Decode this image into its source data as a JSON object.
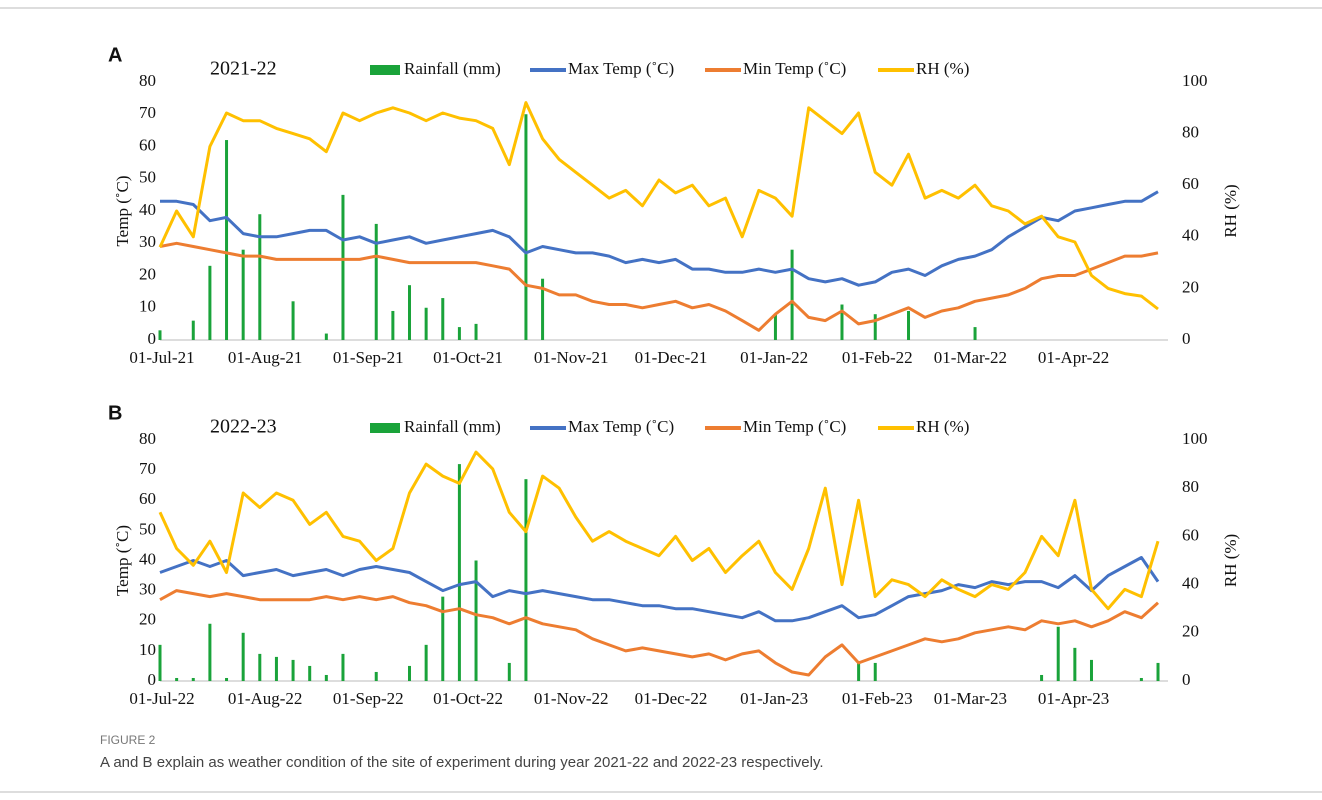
{
  "chart_data": [
    {
      "type": "combo",
      "panel": "A",
      "title": "2021-22",
      "y_label": "Temp (˚C)",
      "y2_label": "RH (%)",
      "x": [
        "01-Jul-21",
        "06-Jul-21",
        "11-Jul-21",
        "16-Jul-21",
        "21-Jul-21",
        "26-Jul-21",
        "31-Jul-21",
        "05-Aug-21",
        "10-Aug-21",
        "15-Aug-21",
        "20-Aug-21",
        "25-Aug-21",
        "30-Aug-21",
        "04-Sep-21",
        "09-Sep-21",
        "14-Sep-21",
        "19-Sep-21",
        "24-Sep-21",
        "29-Sep-21",
        "04-Oct-21",
        "09-Oct-21",
        "14-Oct-21",
        "19-Oct-21",
        "24-Oct-21",
        "29-Oct-21",
        "03-Nov-21",
        "08-Nov-21",
        "13-Nov-21",
        "18-Nov-21",
        "23-Nov-21",
        "28-Nov-21",
        "03-Dec-21",
        "08-Dec-21",
        "13-Dec-21",
        "18-Dec-21",
        "23-Dec-21",
        "28-Dec-21",
        "02-Jan-22",
        "07-Jan-22",
        "12-Jan-22",
        "17-Jan-22",
        "22-Jan-22",
        "27-Jan-22",
        "01-Feb-22",
        "06-Feb-22",
        "11-Feb-22",
        "16-Feb-22",
        "21-Feb-22",
        "26-Feb-22",
        "03-Mar-22",
        "08-Mar-22",
        "13-Mar-22",
        "18-Mar-22",
        "23-Mar-22",
        "28-Mar-22",
        "02-Apr-22",
        "07-Apr-22",
        "12-Apr-22",
        "17-Apr-22",
        "22-Apr-22",
        "27-Apr-22"
      ],
      "xlim": [
        "01-Jul-21",
        "30-Apr-22"
      ],
      "xticks": [
        "01-Jul-21",
        "01-Aug-21",
        "01-Sep-21",
        "01-Oct-21",
        "01-Nov-21",
        "01-Dec-21",
        "01-Jan-22",
        "01-Feb-22",
        "01-Mar-22",
        "01-Apr-22"
      ],
      "ylim": [
        0,
        80
      ],
      "yticks": [
        0,
        10,
        20,
        30,
        40,
        50,
        60,
        70,
        80
      ],
      "y2lim": [
        0,
        100
      ],
      "y2ticks": [
        0,
        20,
        40,
        60,
        80,
        100
      ],
      "series": [
        {
          "name": "Rainfall (mm)",
          "mark": "bar",
          "color": "#1aa33a",
          "values": [
            3,
            0,
            6,
            23,
            62,
            28,
            39,
            0,
            12,
            0,
            2,
            45,
            0,
            36,
            9,
            17,
            10,
            13,
            4,
            5,
            0,
            0,
            70,
            19,
            0,
            0,
            0,
            0,
            0,
            0,
            0,
            0,
            0,
            0,
            0,
            0,
            0,
            8,
            28,
            0,
            0,
            11,
            0,
            8,
            0,
            9,
            0,
            0,
            0,
            4,
            0,
            0,
            0,
            0,
            0,
            0,
            0,
            0,
            0,
            0,
            0
          ]
        },
        {
          "name": "Max Temp (˚C)",
          "mark": "line",
          "color": "#4472c4",
          "values": [
            43,
            43,
            42,
            37,
            38,
            33,
            32,
            32,
            33,
            34,
            34,
            31,
            32,
            30,
            31,
            32,
            30,
            31,
            32,
            33,
            34,
            32,
            27,
            29,
            28,
            27,
            27,
            26,
            24,
            25,
            24,
            25,
            22,
            22,
            21,
            21,
            22,
            21,
            22,
            19,
            18,
            19,
            17,
            18,
            21,
            22,
            20,
            23,
            25,
            26,
            28,
            32,
            35,
            38,
            37,
            40,
            41,
            42,
            43,
            43,
            46
          ]
        },
        {
          "name": "Min Temp (˚C)",
          "mark": "line",
          "color": "#ed7d31",
          "values": [
            29,
            30,
            29,
            28,
            27,
            26,
            26,
            25,
            25,
            25,
            25,
            25,
            25,
            26,
            25,
            24,
            24,
            24,
            24,
            24,
            23,
            22,
            17,
            16,
            14,
            14,
            12,
            11,
            11,
            10,
            11,
            12,
            10,
            11,
            9,
            6,
            3,
            8,
            12,
            7,
            6,
            9,
            5,
            6,
            8,
            10,
            7,
            9,
            10,
            12,
            13,
            14,
            16,
            19,
            20,
            20,
            22,
            24,
            26,
            26,
            27
          ]
        },
        {
          "name": "RH (%)",
          "mark": "line",
          "axis": "y2",
          "color": "#ffc000",
          "values": [
            36,
            50,
            40,
            75,
            88,
            85,
            85,
            82,
            80,
            78,
            73,
            88,
            85,
            88,
            90,
            88,
            85,
            88,
            86,
            85,
            82,
            68,
            92,
            78,
            70,
            65,
            60,
            55,
            58,
            52,
            62,
            57,
            60,
            52,
            55,
            40,
            58,
            55,
            48,
            90,
            85,
            80,
            88,
            65,
            60,
            72,
            55,
            58,
            55,
            60,
            52,
            50,
            45,
            48,
            40,
            38,
            25,
            20,
            18,
            17,
            12
          ]
        }
      ]
    },
    {
      "type": "combo",
      "panel": "B",
      "title": "2022-23",
      "y_label": "Temp (˚C)",
      "y2_label": "RH (%)",
      "x": [
        "01-Jul-22",
        "06-Jul-22",
        "11-Jul-22",
        "16-Jul-22",
        "21-Jul-22",
        "26-Jul-22",
        "31-Jul-22",
        "05-Aug-22",
        "10-Aug-22",
        "15-Aug-22",
        "20-Aug-22",
        "25-Aug-22",
        "30-Aug-22",
        "04-Sep-22",
        "09-Sep-22",
        "14-Sep-22",
        "19-Sep-22",
        "24-Sep-22",
        "29-Sep-22",
        "04-Oct-22",
        "09-Oct-22",
        "14-Oct-22",
        "19-Oct-22",
        "24-Oct-22",
        "29-Oct-22",
        "03-Nov-22",
        "08-Nov-22",
        "13-Nov-22",
        "18-Nov-22",
        "23-Nov-22",
        "28-Nov-22",
        "03-Dec-22",
        "08-Dec-22",
        "13-Dec-22",
        "18-Dec-22",
        "23-Dec-22",
        "28-Dec-22",
        "02-Jan-23",
        "07-Jan-23",
        "12-Jan-23",
        "17-Jan-23",
        "22-Jan-23",
        "27-Jan-23",
        "01-Feb-23",
        "06-Feb-23",
        "11-Feb-23",
        "16-Feb-23",
        "21-Feb-23",
        "26-Feb-23",
        "03-Mar-23",
        "08-Mar-23",
        "13-Mar-23",
        "18-Mar-23",
        "23-Mar-23",
        "28-Mar-23",
        "02-Apr-23",
        "07-Apr-23",
        "12-Apr-23",
        "17-Apr-23",
        "22-Apr-23",
        "27-Apr-23"
      ],
      "xlim": [
        "01-Jul-22",
        "30-Apr-23"
      ],
      "xticks": [
        "01-Jul-22",
        "01-Aug-22",
        "01-Sep-22",
        "01-Oct-22",
        "01-Nov-22",
        "01-Dec-22",
        "01-Jan-23",
        "01-Feb-23",
        "01-Mar-23",
        "01-Apr-23"
      ],
      "ylim": [
        0,
        80
      ],
      "yticks": [
        0,
        10,
        20,
        30,
        40,
        50,
        60,
        70,
        80
      ],
      "y2lim": [
        0,
        100
      ],
      "y2ticks": [
        0,
        20,
        40,
        60,
        80,
        100
      ],
      "series": [
        {
          "name": "Rainfall (mm)",
          "mark": "bar",
          "color": "#1aa33a",
          "values": [
            12,
            1,
            1,
            19,
            1,
            16,
            9,
            8,
            7,
            5,
            2,
            9,
            0,
            3,
            0,
            5,
            12,
            28,
            72,
            40,
            0,
            6,
            67,
            0,
            0,
            0,
            0,
            0,
            0,
            0,
            0,
            0,
            0,
            0,
            0,
            0,
            0,
            0,
            0,
            0,
            0,
            0,
            6,
            6,
            0,
            0,
            0,
            0,
            0,
            0,
            0,
            0,
            0,
            2,
            18,
            11,
            7,
            0,
            0,
            1,
            6
          ]
        },
        {
          "name": "Max Temp (˚C)",
          "mark": "line",
          "color": "#4472c4",
          "values": [
            36,
            38,
            40,
            38,
            40,
            35,
            36,
            37,
            35,
            36,
            37,
            35,
            37,
            38,
            37,
            36,
            33,
            30,
            32,
            33,
            28,
            30,
            29,
            30,
            29,
            28,
            27,
            27,
            26,
            25,
            25,
            24,
            24,
            23,
            22,
            21,
            23,
            20,
            20,
            21,
            23,
            25,
            21,
            22,
            25,
            28,
            29,
            30,
            32,
            31,
            33,
            32,
            33,
            33,
            31,
            35,
            30,
            35,
            38,
            41,
            33
          ]
        },
        {
          "name": "Min Temp (˚C)",
          "mark": "line",
          "color": "#ed7d31",
          "values": [
            27,
            30,
            29,
            28,
            29,
            28,
            27,
            27,
            27,
            27,
            28,
            27,
            28,
            27,
            28,
            26,
            25,
            23,
            24,
            22,
            21,
            19,
            21,
            19,
            18,
            17,
            14,
            12,
            10,
            11,
            10,
            9,
            8,
            9,
            7,
            9,
            10,
            6,
            3,
            2,
            8,
            12,
            6,
            8,
            10,
            12,
            14,
            13,
            14,
            16,
            17,
            18,
            17,
            20,
            19,
            20,
            18,
            20,
            23,
            21,
            26
          ]
        },
        {
          "name": "RH (%)",
          "mark": "line",
          "axis": "y2",
          "color": "#ffc000",
          "values": [
            70,
            55,
            48,
            58,
            45,
            78,
            72,
            78,
            75,
            65,
            70,
            60,
            58,
            50,
            55,
            78,
            90,
            85,
            82,
            95,
            88,
            70,
            62,
            85,
            80,
            68,
            58,
            62,
            58,
            55,
            52,
            60,
            50,
            55,
            45,
            52,
            58,
            45,
            38,
            55,
            80,
            40,
            75,
            35,
            42,
            40,
            35,
            42,
            38,
            35,
            40,
            38,
            45,
            60,
            52,
            75,
            38,
            30,
            38,
            35,
            58
          ]
        }
      ]
    }
  ],
  "figure": {
    "label": "FIGURE 2",
    "caption": "A and B explain as weather condition of the site of experiment during year 2021-22 and 2022-23 respectively."
  }
}
